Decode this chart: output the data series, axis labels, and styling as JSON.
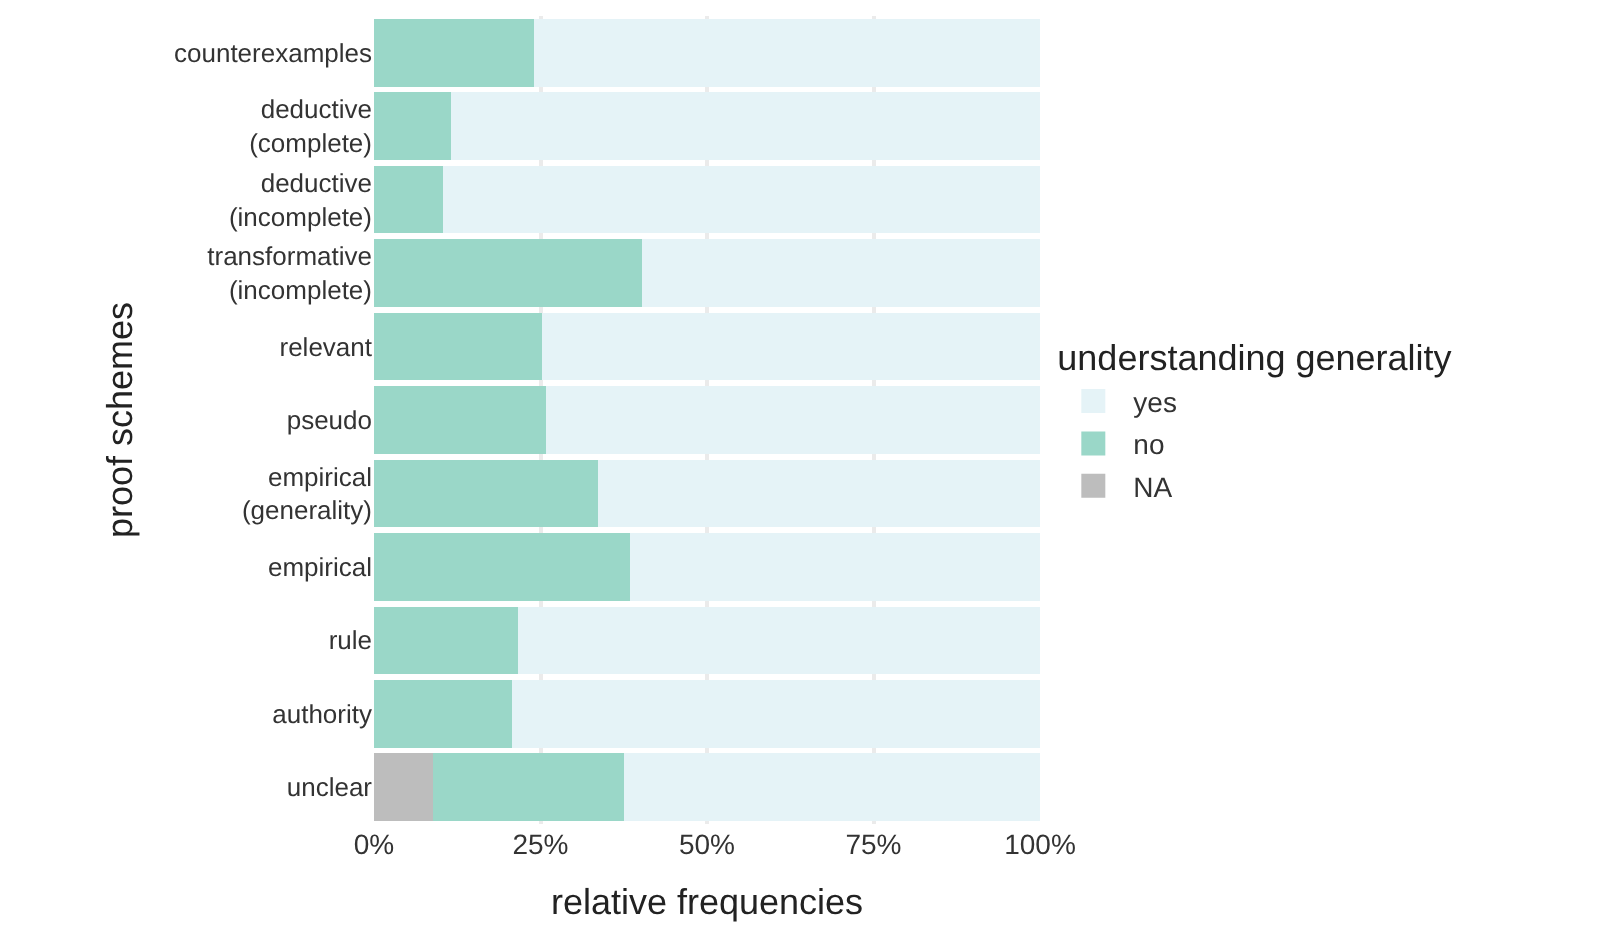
{
  "chart_data": {
    "type": "bar",
    "orientation": "horizontal",
    "stacked": true,
    "xlabel": "relative frequencies",
    "ylabel": "proof schemes",
    "legend_title": "understanding generality",
    "legend": "right",
    "grid": true,
    "categories": [
      "counterexamples",
      "deductive\n(complete)",
      "deductive\n(incomplete)",
      "transformative\n(incomplete)",
      "relevant",
      "pseudo",
      "empirical\n(generality)",
      "empirical",
      "rule",
      "authority",
      "unclear"
    ],
    "series": [
      {
        "name": "NA",
        "color": "#bdbdbd",
        "values": [
          0,
          0,
          0,
          0,
          0,
          0,
          0,
          0,
          0,
          0,
          8.8
        ]
      },
      {
        "name": "no",
        "color": "#9ad7c8",
        "values": [
          24.0,
          11.5,
          10.3,
          40.2,
          25.2,
          25.8,
          33.6,
          38.4,
          21.6,
          20.7,
          28.7
        ]
      },
      {
        "name": "yes",
        "color": "#e5f3f7",
        "values": [
          76.0,
          88.5,
          89.7,
          59.8,
          74.8,
          74.2,
          66.4,
          61.6,
          78.4,
          79.3,
          62.5
        ]
      }
    ],
    "xlim": [
      0,
      100
    ],
    "xticks": [
      {
        "value": 0,
        "label": "0%"
      },
      {
        "value": 25,
        "label": "25%"
      },
      {
        "value": 50,
        "label": "50%"
      },
      {
        "value": 75,
        "label": "75%"
      },
      {
        "value": 100,
        "label": "100%"
      }
    ]
  }
}
